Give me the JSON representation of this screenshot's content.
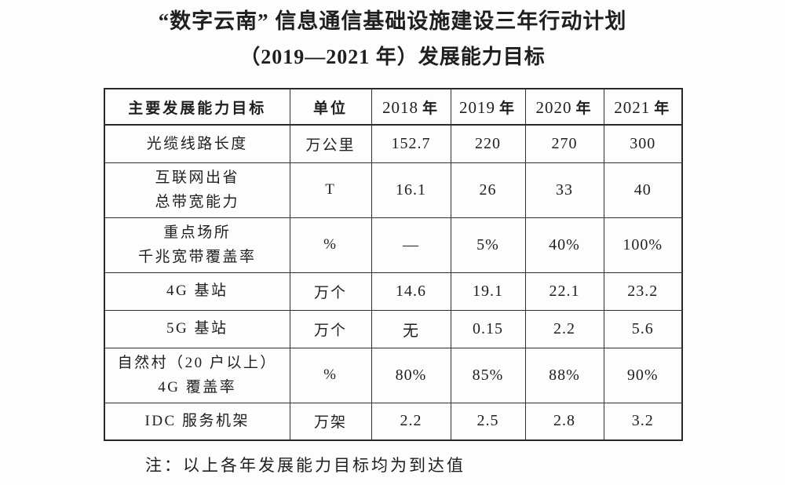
{
  "page": {
    "title_line1": "“数字云南” 信息通信基础设施建设三年行动计划",
    "title_line2": "（2019—2021 年）发展能力目标",
    "note": "注：以上各年发展能力目标均为到达值"
  },
  "table": {
    "header": {
      "indicator": "主要发展能力目标",
      "unit": "单位",
      "years": [
        {
          "num": "2018",
          "suffix": "年"
        },
        {
          "num": "2019",
          "suffix": "年"
        },
        {
          "num": "2020",
          "suffix": "年"
        },
        {
          "num": "2021",
          "suffix": "年"
        }
      ]
    },
    "rows": [
      {
        "indicator": [
          "光缆线路长度"
        ],
        "unit": "万公里",
        "values": [
          "152.7",
          "220",
          "270",
          "300"
        ]
      },
      {
        "indicator": [
          "互联网出省",
          "总带宽能力"
        ],
        "unit": "T",
        "values": [
          "16.1",
          "26",
          "33",
          "40"
        ]
      },
      {
        "indicator": [
          "重点场所",
          "千兆宽带覆盖率"
        ],
        "unit": "%",
        "values": [
          "—",
          "5%",
          "40%",
          "100%"
        ]
      },
      {
        "indicator": [
          "4G 基站"
        ],
        "unit": "万个",
        "values": [
          "14.6",
          "19.1",
          "22.1",
          "23.2"
        ]
      },
      {
        "indicator": [
          "5G 基站"
        ],
        "unit": "万个",
        "values": [
          "无",
          "0.15",
          "2.2",
          "5.6"
        ]
      },
      {
        "indicator": [
          "自然村（20 户以上）",
          "4G 覆盖率"
        ],
        "unit": "%",
        "values": [
          "80%",
          "85%",
          "88%",
          "90%"
        ]
      },
      {
        "indicator": [
          "IDC 服务机架"
        ],
        "unit": "万架",
        "values": [
          "2.2",
          "2.5",
          "2.8",
          "3.2"
        ]
      }
    ]
  }
}
